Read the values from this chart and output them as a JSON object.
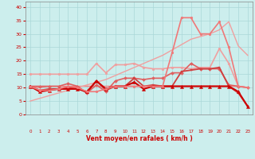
{
  "xlabel": "Vent moyen/en rafales ( km/h )",
  "xlim": [
    -0.5,
    23.5
  ],
  "ylim": [
    0,
    42
  ],
  "yticks": [
    0,
    5,
    10,
    15,
    20,
    25,
    30,
    35,
    40
  ],
  "xticks": [
    0,
    1,
    2,
    3,
    4,
    5,
    6,
    7,
    8,
    9,
    10,
    11,
    12,
    13,
    14,
    15,
    16,
    17,
    18,
    19,
    20,
    21,
    22,
    23
  ],
  "background_color": "#cceeed",
  "grid_color": "#aad8d8",
  "lines": [
    {
      "x": [
        0,
        1,
        2,
        3,
        4,
        5,
        6,
        7,
        8,
        9,
        10,
        11,
        12,
        13,
        14,
        15,
        16,
        17,
        18,
        19,
        20,
        21,
        22,
        23
      ],
      "y": [
        10.5,
        10.0,
        10.5,
        10.5,
        10.5,
        10.5,
        10.5,
        10.5,
        10.5,
        10.5,
        10.5,
        10.5,
        10.5,
        10.5,
        10.5,
        10.5,
        10.5,
        10.5,
        10.5,
        10.5,
        10.5,
        10.5,
        10.5,
        10.0
      ],
      "color": "#f08080",
      "lw": 1.0,
      "marker": null,
      "ms": 2
    },
    {
      "x": [
        0,
        1,
        2,
        3,
        4,
        5,
        6,
        7,
        8,
        9,
        10,
        11,
        12,
        13,
        14,
        15,
        16,
        17,
        18,
        19,
        20,
        21,
        22,
        23
      ],
      "y": [
        5.0,
        6.0,
        7.0,
        8.0,
        9.0,
        10.0,
        11.0,
        12.0,
        13.0,
        14.5,
        16.0,
        17.5,
        19.0,
        20.5,
        22.0,
        24.0,
        26.0,
        28.0,
        29.0,
        30.0,
        31.5,
        34.5,
        25.5,
        22.0
      ],
      "color": "#f0a0a0",
      "lw": 1.0,
      "marker": null,
      "ms": 2
    },
    {
      "x": [
        0,
        1,
        2,
        3,
        4,
        5,
        6,
        7,
        8,
        9,
        10,
        11,
        12,
        13,
        14,
        15,
        16,
        17,
        18,
        19,
        20,
        21,
        22,
        23
      ],
      "y": [
        15.0,
        15.0,
        15.0,
        15.0,
        15.0,
        15.0,
        15.0,
        19.0,
        15.5,
        18.5,
        18.5,
        19.0,
        17.5,
        17.0,
        17.0,
        17.5,
        17.5,
        17.0,
        17.5,
        17.5,
        24.5,
        19.0,
        10.5,
        10.0
      ],
      "color": "#f0a0a0",
      "lw": 1.2,
      "marker": "o",
      "ms": 2.0
    },
    {
      "x": [
        0,
        1,
        2,
        3,
        4,
        5,
        6,
        7,
        8,
        9,
        10,
        11,
        12,
        13,
        14,
        15,
        16,
        17,
        18,
        19,
        20,
        21,
        22,
        23
      ],
      "y": [
        10.5,
        10.5,
        10.5,
        10.5,
        11.5,
        10.5,
        8.0,
        11.0,
        8.5,
        12.5,
        13.5,
        13.5,
        13.0,
        13.5,
        13.5,
        15.5,
        15.5,
        19.0,
        17.0,
        17.0,
        17.0,
        11.0,
        10.5,
        10.0
      ],
      "color": "#e06060",
      "lw": 1.2,
      "marker": "D",
      "ms": 2.0
    },
    {
      "x": [
        0,
        1,
        2,
        3,
        4,
        5,
        6,
        7,
        8,
        9,
        10,
        11,
        12,
        13,
        14,
        15,
        16,
        17,
        18,
        19,
        20,
        21,
        22,
        23
      ],
      "y": [
        10.5,
        9.0,
        9.5,
        9.5,
        10.0,
        10.0,
        8.0,
        12.5,
        9.0,
        10.5,
        10.5,
        13.5,
        10.5,
        11.0,
        10.5,
        10.5,
        16.0,
        16.5,
        17.0,
        17.0,
        17.5,
        10.5,
        8.0,
        3.0
      ],
      "color": "#d04040",
      "lw": 1.3,
      "marker": "s",
      "ms": 2.0
    },
    {
      "x": [
        0,
        1,
        2,
        3,
        4,
        5,
        6,
        7,
        8,
        9,
        10,
        11,
        12,
        13,
        14,
        15,
        16,
        17,
        18,
        19,
        20,
        21,
        22,
        23
      ],
      "y": [
        10.5,
        8.5,
        9.0,
        9.5,
        9.5,
        9.5,
        8.5,
        12.5,
        9.5,
        10.5,
        10.5,
        12.0,
        9.5,
        10.5,
        10.5,
        10.5,
        10.5,
        10.5,
        10.5,
        10.5,
        10.5,
        10.5,
        8.5,
        3.0
      ],
      "color": "#cc0000",
      "lw": 1.5,
      "marker": "^",
      "ms": 3.0
    },
    {
      "x": [
        0,
        1,
        2,
        3,
        4,
        5,
        6,
        7,
        8,
        9,
        10,
        11,
        12,
        13,
        14,
        15,
        16,
        17,
        18,
        19,
        20,
        21,
        22,
        23
      ],
      "y": [
        10.5,
        9.0,
        9.0,
        9.5,
        10.5,
        10.0,
        8.5,
        8.5,
        9.5,
        10.5,
        10.5,
        10.5,
        10.5,
        10.5,
        10.5,
        23.0,
        36.0,
        36.0,
        30.0,
        30.0,
        34.5,
        25.0,
        10.5,
        10.0
      ],
      "color": "#f07878",
      "lw": 1.2,
      "marker": "o",
      "ms": 2.0
    }
  ],
  "arrow_chars": [
    "↙",
    "↙",
    "↙",
    "←",
    "←",
    "←",
    "←",
    "←",
    "←",
    "←",
    "←",
    "←",
    "←",
    "←",
    "←",
    "←",
    "↙",
    "↙",
    "↙",
    "↙",
    "↓",
    "↙",
    "↘",
    "↓"
  ],
  "arrow_color": "#cc0000"
}
